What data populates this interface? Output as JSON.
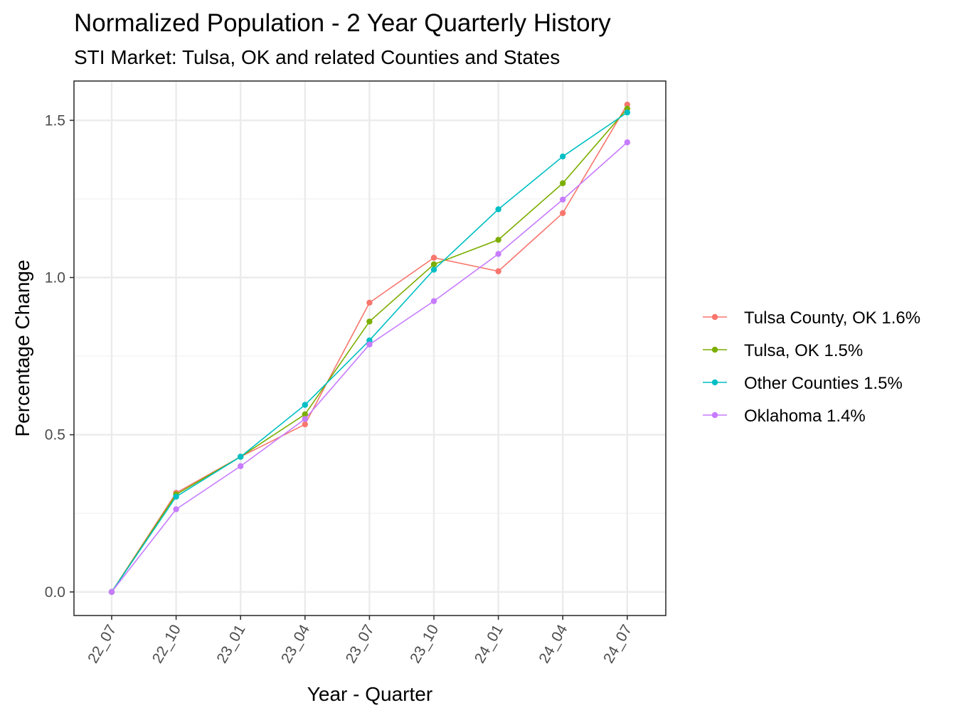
{
  "chart_data": {
    "type": "line",
    "title": "Normalized Population - 2 Year Quarterly History",
    "subtitle": "STI Market: Tulsa, OK and related Counties and States",
    "xlabel": "Year - Quarter",
    "ylabel": "Percentage Change",
    "categories": [
      "22_07",
      "22_10",
      "23_01",
      "23_04",
      "23_07",
      "23_10",
      "24_01",
      "24_04",
      "24_07"
    ],
    "ylim": [
      -0.075,
      1.625
    ],
    "yticks": [
      0.0,
      0.5,
      1.0,
      1.5
    ],
    "ytick_labels": [
      "0.0",
      "0.5",
      "1.0",
      "1.5"
    ],
    "grid": true,
    "legend_position": "right",
    "series": [
      {
        "name": "Tulsa County, OK 1.6%",
        "color": "#F8766D",
        "values": [
          0.0,
          0.315,
          0.43,
          0.533,
          0.92,
          1.063,
          1.02,
          1.205,
          1.55
        ]
      },
      {
        "name": "Tulsa, OK 1.5%",
        "color": "#7CAE00",
        "values": [
          0.0,
          0.31,
          0.43,
          0.565,
          0.86,
          1.042,
          1.12,
          1.3,
          1.537
        ]
      },
      {
        "name": "Other Counties 1.5%",
        "color": "#00BFC4",
        "values": [
          0.0,
          0.303,
          0.43,
          0.595,
          0.8,
          1.025,
          1.217,
          1.385,
          1.525
        ]
      },
      {
        "name": "Oklahoma 1.4%",
        "color": "#C77CFF",
        "values": [
          0.0,
          0.263,
          0.4,
          0.55,
          0.787,
          0.925,
          1.075,
          1.248,
          1.43
        ]
      }
    ]
  }
}
